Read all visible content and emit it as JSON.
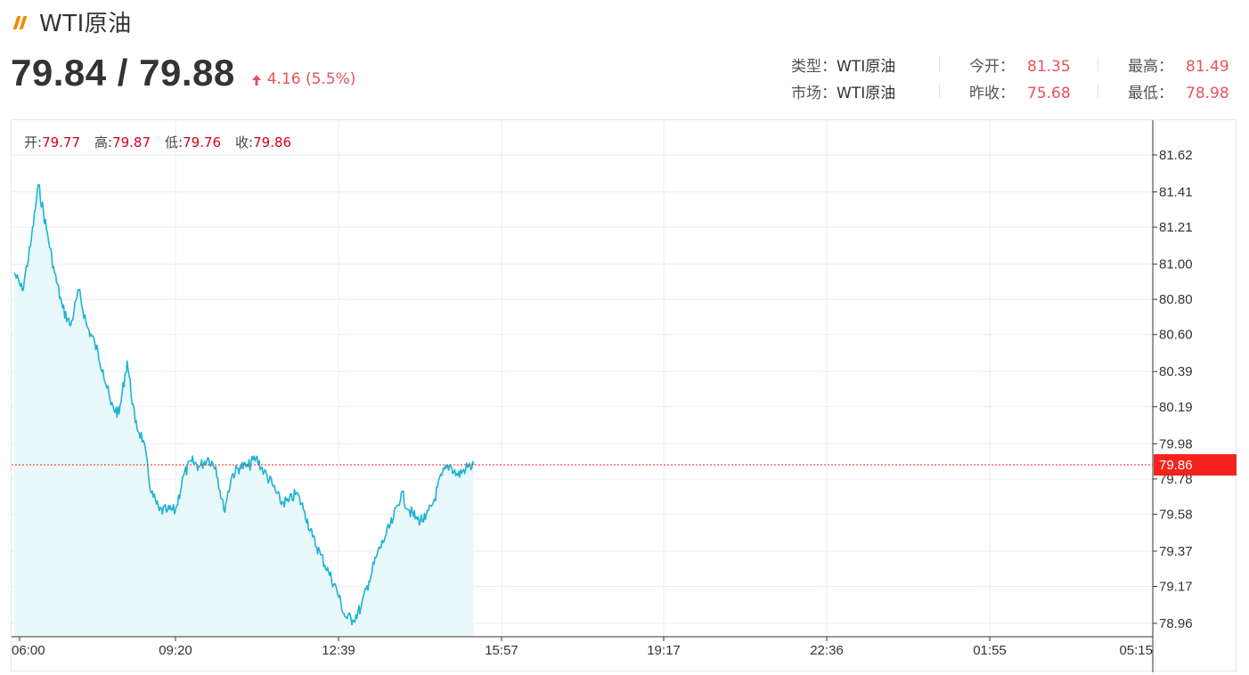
{
  "header": {
    "title": "WTI原油"
  },
  "quote": {
    "price": "79.84 / 79.88",
    "change": "4.16 (5.5%)"
  },
  "info": {
    "type_label": "类型：",
    "type_value": "WTI原油",
    "market_label": "市场：",
    "market_value": "WTI原油",
    "open_label": "今开：",
    "open_value": "81.35",
    "prev_close_label": "昨收：",
    "prev_close_value": "75.68",
    "high_label": "最高：",
    "high_value": "81.49",
    "low_label": "最低：",
    "low_value": "78.98"
  },
  "ohlc": {
    "open_label": "开:",
    "open_value": "79.77",
    "high_label": "高:",
    "high_value": "79.87",
    "low_label": "低:",
    "low_value": "79.76",
    "close_label": "收:",
    "close_value": "79.86"
  },
  "colors": {
    "line": "#1fb3d2",
    "area": "#e9f8fb",
    "current": "#f5231b",
    "up": "#e8515a",
    "grid": "#e4eef3",
    "logo": "#f08a00"
  },
  "chart_data": {
    "type": "area",
    "title": "",
    "xlabel": "",
    "ylabel": "",
    "x_ticks": [
      "06:00",
      "09:20",
      "12:39",
      "15:57",
      "19:17",
      "22:36",
      "01:55",
      "05:15"
    ],
    "y_ticks": [
      "81.62",
      "81.41",
      "81.21",
      "81.00",
      "80.80",
      "80.60",
      "80.39",
      "80.19",
      "79.98",
      "79.78",
      "79.58",
      "79.37",
      "79.17",
      "78.96"
    ],
    "current_value": "79.86",
    "grid": true,
    "series": [
      {
        "x": [
          "06:00",
          "06:10",
          "06:20",
          "06:30",
          "06:40",
          "06:50",
          "07:00",
          "07:10",
          "07:20",
          "07:30",
          "07:40",
          "07:50",
          "08:00",
          "08:10",
          "08:20",
          "08:30",
          "08:40",
          "08:50",
          "09:00",
          "09:10",
          "09:20",
          "09:30",
          "09:40",
          "09:50",
          "10:00",
          "10:10",
          "10:20",
          "10:30",
          "10:40",
          "10:50",
          "11:00",
          "11:10",
          "11:20",
          "11:30",
          "11:40",
          "11:50",
          "12:00",
          "12:10",
          "12:20",
          "12:30",
          "12:40",
          "12:50",
          "13:00",
          "13:10",
          "13:20",
          "13:30",
          "13:40",
          "13:50",
          "14:00",
          "14:10",
          "14:20",
          "14:30",
          "14:40",
          "14:50",
          "15:00",
          "15:10",
          "15:20",
          "15:30"
        ],
        "values": [
          80.95,
          80.85,
          81.1,
          81.45,
          81.2,
          80.95,
          80.75,
          80.65,
          80.85,
          80.65,
          80.55,
          80.4,
          80.2,
          80.15,
          80.45,
          80.1,
          80.0,
          79.7,
          79.6,
          79.6,
          79.6,
          79.8,
          79.88,
          79.85,
          79.9,
          79.85,
          79.6,
          79.8,
          79.85,
          79.85,
          79.9,
          79.82,
          79.75,
          79.65,
          79.65,
          79.7,
          79.6,
          79.45,
          79.35,
          79.25,
          79.15,
          79.0,
          78.98,
          79.05,
          79.2,
          79.35,
          79.45,
          79.55,
          79.7,
          79.6,
          79.55,
          79.55,
          79.65,
          79.8,
          79.86,
          79.8,
          79.84,
          79.86
        ]
      }
    ]
  }
}
